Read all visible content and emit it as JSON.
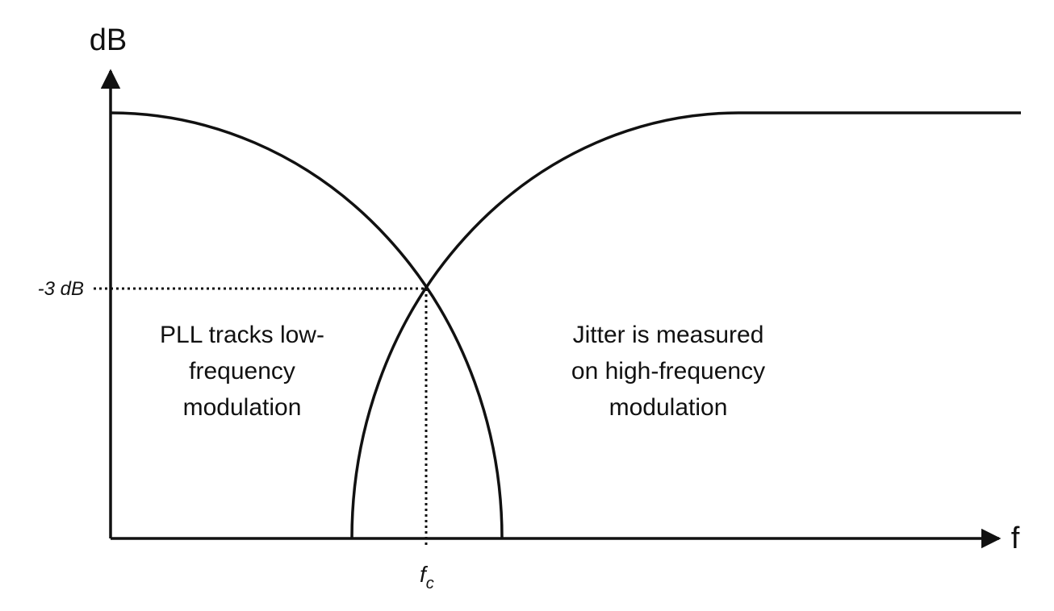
{
  "y_axis_label": "dB",
  "x_axis_label": "f",
  "level_label": "-3 dB",
  "cutoff_label": {
    "main": "f",
    "sub": "c"
  },
  "left_region_text": [
    "PLL tracks low-",
    "frequency",
    "modulation"
  ],
  "right_region_text": [
    "Jitter is measured",
    "on high-frequency",
    "modulation"
  ],
  "colors": {
    "line": "#111111",
    "text": "#111111"
  }
}
